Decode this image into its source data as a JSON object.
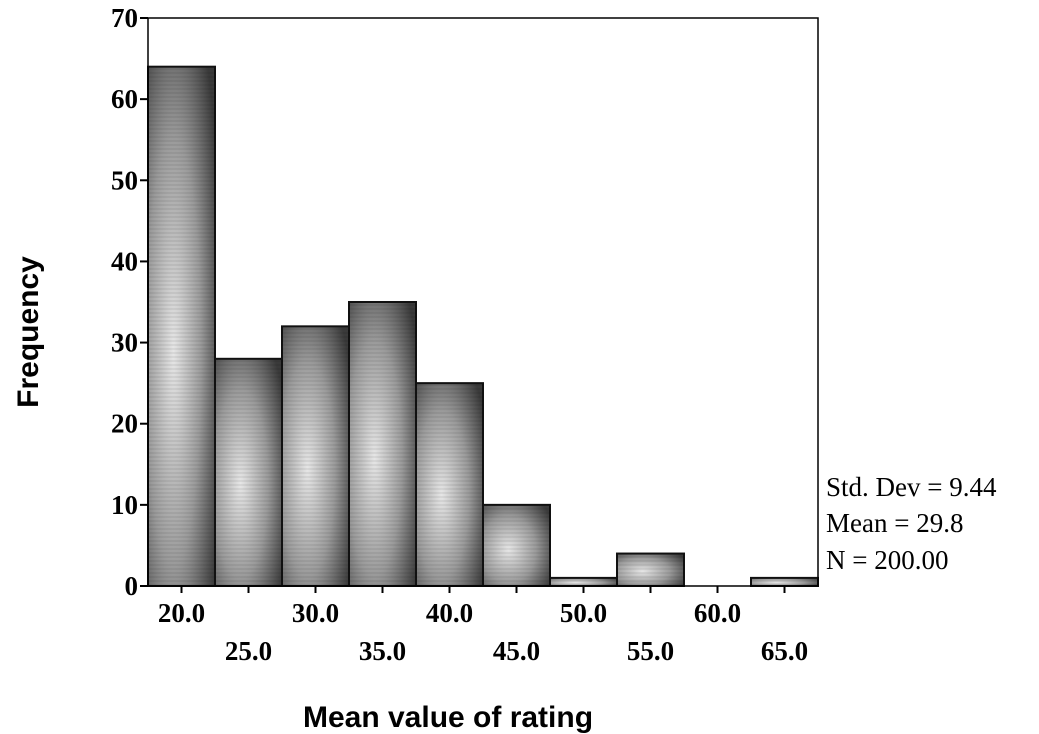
{
  "chart_data": {
    "type": "bar",
    "title": "",
    "xlabel": "Mean value of rating",
    "ylabel": "Frequency",
    "bin_width": 5,
    "bin_centers": [
      20,
      25,
      30,
      35,
      40,
      45,
      50,
      55,
      60,
      65
    ],
    "values": [
      64,
      28,
      32,
      35,
      25,
      10,
      1,
      4,
      0,
      1
    ],
    "x_tick_labels_upper": [
      "20.0",
      "30.0",
      "40.0",
      "50.0",
      "60.0"
    ],
    "x_tick_labels_lower": [
      "25.0",
      "35.0",
      "45.0",
      "55.0",
      "65.0"
    ],
    "y_ticks": [
      "0",
      "10",
      "20",
      "30",
      "40",
      "50",
      "60",
      "70"
    ],
    "ylim": [
      0,
      70
    ],
    "xlim": [
      17.5,
      67.5
    ],
    "grid": false,
    "colors": {
      "bar_fill": "#8a8a8a",
      "bar_edge": "#111111"
    },
    "stats": {
      "std_dev": "Std. Dev = 9.44",
      "mean": "Mean = 29.8",
      "n": "N = 200.00"
    }
  }
}
